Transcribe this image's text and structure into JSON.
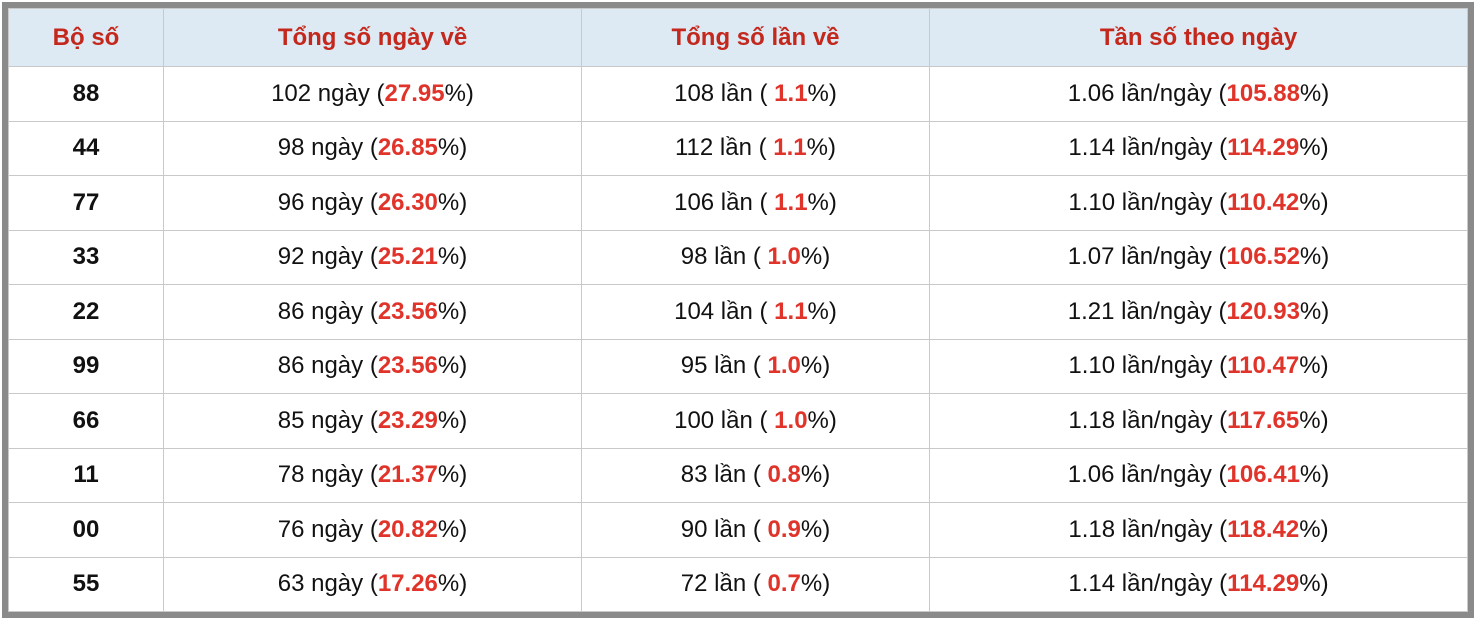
{
  "table": {
    "headers": [
      "Bộ số",
      "Tổng số ngày về",
      "Tổng số lần về",
      "Tần số theo ngày"
    ],
    "rows": [
      {
        "number": "88",
        "days": {
          "before": "102 ngày (",
          "value": "27.95",
          "after": "%)"
        },
        "times": {
          "before": "108 lần ( ",
          "value": "1.1",
          "after": "%)"
        },
        "freq": {
          "before": "1.06 lần/ngày (",
          "value": "105.88",
          "after": "%)"
        }
      },
      {
        "number": "44",
        "days": {
          "before": "98 ngày (",
          "value": "26.85",
          "after": "%)"
        },
        "times": {
          "before": "112 lần ( ",
          "value": "1.1",
          "after": "%)"
        },
        "freq": {
          "before": "1.14 lần/ngày (",
          "value": "114.29",
          "after": "%)"
        }
      },
      {
        "number": "77",
        "days": {
          "before": "96 ngày (",
          "value": "26.30",
          "after": "%)"
        },
        "times": {
          "before": "106 lần ( ",
          "value": "1.1",
          "after": "%)"
        },
        "freq": {
          "before": "1.10 lần/ngày (",
          "value": "110.42",
          "after": "%)"
        }
      },
      {
        "number": "33",
        "days": {
          "before": "92 ngày (",
          "value": "25.21",
          "after": "%)"
        },
        "times": {
          "before": "98 lần ( ",
          "value": "1.0",
          "after": "%)"
        },
        "freq": {
          "before": "1.07 lần/ngày (",
          "value": "106.52",
          "after": "%)"
        }
      },
      {
        "number": "22",
        "days": {
          "before": "86 ngày (",
          "value": "23.56",
          "after": "%)"
        },
        "times": {
          "before": "104 lần ( ",
          "value": "1.1",
          "after": "%)"
        },
        "freq": {
          "before": "1.21 lần/ngày (",
          "value": "120.93",
          "after": "%)"
        }
      },
      {
        "number": "99",
        "days": {
          "before": "86 ngày (",
          "value": "23.56",
          "after": "%)"
        },
        "times": {
          "before": "95 lần ( ",
          "value": "1.0",
          "after": "%)"
        },
        "freq": {
          "before": "1.10 lần/ngày (",
          "value": "110.47",
          "after": "%)"
        }
      },
      {
        "number": "66",
        "days": {
          "before": "85 ngày (",
          "value": "23.29",
          "after": "%)"
        },
        "times": {
          "before": "100 lần ( ",
          "value": "1.0",
          "after": "%)"
        },
        "freq": {
          "before": "1.18 lần/ngày (",
          "value": "117.65",
          "after": "%)"
        }
      },
      {
        "number": "11",
        "days": {
          "before": "78 ngày (",
          "value": "21.37",
          "after": "%)"
        },
        "times": {
          "before": "83 lần ( ",
          "value": "0.8",
          "after": "%)"
        },
        "freq": {
          "before": "1.06 lần/ngày (",
          "value": "106.41",
          "after": "%)"
        }
      },
      {
        "number": "00",
        "days": {
          "before": "76 ngày (",
          "value": "20.82",
          "after": "%)"
        },
        "times": {
          "before": "90 lần ( ",
          "value": "0.9",
          "after": "%)"
        },
        "freq": {
          "before": "1.18 lần/ngày (",
          "value": "118.42",
          "after": "%)"
        }
      },
      {
        "number": "55",
        "days": {
          "before": "63 ngày (",
          "value": "17.26",
          "after": "%)"
        },
        "times": {
          "before": "72 lần ( ",
          "value": "0.7",
          "after": "%)"
        },
        "freq": {
          "before": "1.14 lần/ngày (",
          "value": "114.29",
          "after": "%)"
        }
      }
    ]
  }
}
